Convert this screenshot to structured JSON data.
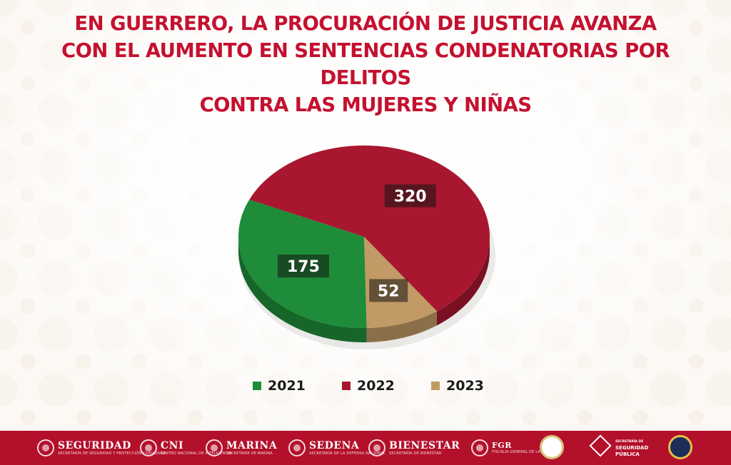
{
  "title_lines": [
    "EN GUERRERO, LA PROCURACIÓN DE JUSTICIA AVANZA",
    "CON EL AUMENTO EN SENTENCIAS CONDENATORIAS POR DELITOS",
    "CONTRA LAS MUJERES Y NIÑAS"
  ],
  "chart_data": {
    "type": "pie",
    "style": "3d",
    "categories": [
      "2021",
      "2022",
      "2023"
    ],
    "values": [
      175,
      320,
      52
    ],
    "data_labels": [
      "175",
      "320",
      "52"
    ],
    "colors": [
      "#1e8c39",
      "#a8172f",
      "#c19a65"
    ],
    "legend": [
      "2021",
      "2022",
      "2023"
    ],
    "legend_position": "bottom"
  },
  "footer": {
    "logos": [
      {
        "name": "SEGURIDAD",
        "subtitle": "SECRETARÍA DE SEGURIDAD Y PROTECCIÓN CIUDADANA",
        "icon": "seal-icon"
      },
      {
        "name": "CNI",
        "subtitle": "CENTRO NACIONAL DE INTELIGENCIA",
        "icon": "seal-icon"
      },
      {
        "name": "MARINA",
        "subtitle": "SECRETARÍA DE MARINA",
        "icon": "seal-icon"
      },
      {
        "name": "SEDENA",
        "subtitle": "SECRETARÍA DE LA DEFENSA NACIONAL",
        "icon": "seal-icon"
      },
      {
        "name": "BIENESTAR",
        "subtitle": "SECRETARÍA DE BIENESTAR",
        "icon": "seal-icon"
      },
      {
        "name": "FGR",
        "subtitle": "FISCALÍA GENERAL DE LA REPÚBLICA",
        "icon": "seal-icon"
      }
    ],
    "ssp": {
      "line1": "SECRETARÍA DE",
      "line2": "SEGURIDAD",
      "line3": "PÚBLICA"
    }
  }
}
